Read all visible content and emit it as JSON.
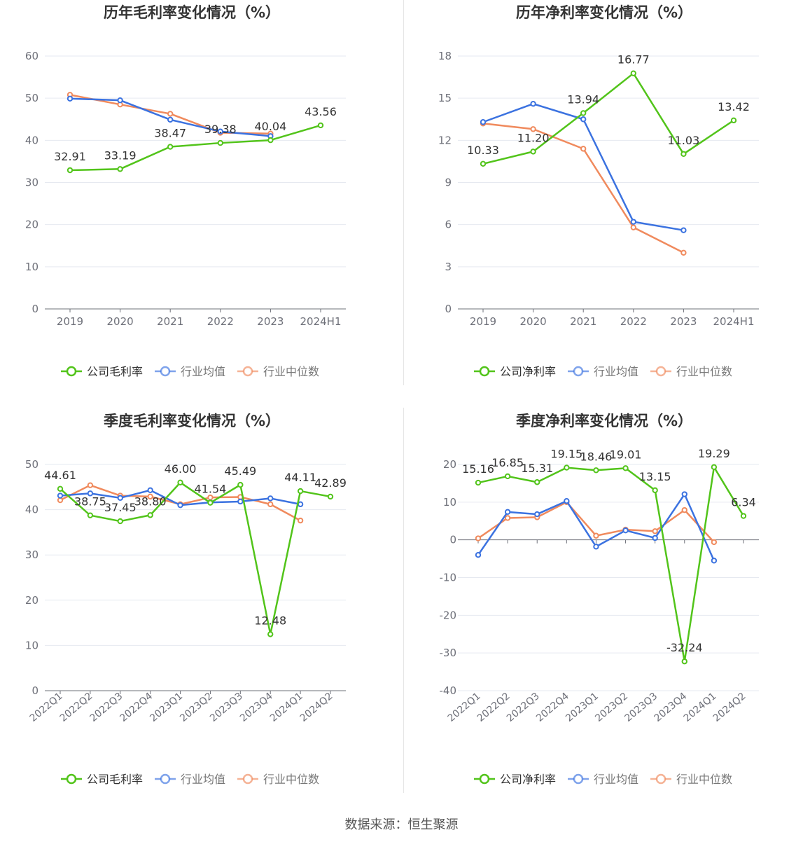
{
  "colors": {
    "company": "#52c41a",
    "avg": "#3b72e0",
    "median": "#f08a5d",
    "grid": "#e6e9f0",
    "axis": "#6e7079",
    "text": "#333333"
  },
  "source": "数据来源：恒生聚源",
  "chart_data": [
    {
      "type": "line",
      "title": "历年毛利率变化情况（%）",
      "categories": [
        "2019",
        "2020",
        "2021",
        "2022",
        "2023",
        "2024H1"
      ],
      "ylim": [
        0,
        60
      ],
      "yticks": [
        0,
        10,
        20,
        30,
        40,
        50,
        60
      ],
      "grid": true,
      "legend_position": "bottom",
      "label_series": 0,
      "series": [
        {
          "name": "公司毛利率",
          "color_key": "company",
          "values": [
            32.91,
            33.19,
            38.47,
            39.38,
            40.04,
            43.56
          ],
          "labels": [
            "32.91",
            "33.19",
            "38.47",
            "39.38",
            "40.04",
            "43.56"
          ]
        },
        {
          "name": "行业均值",
          "color_key": "avg",
          "values": [
            49.9,
            49.5,
            44.9,
            42.1,
            41.0,
            null
          ]
        },
        {
          "name": "行业中位数",
          "color_key": "median",
          "values": [
            50.8,
            48.5,
            46.3,
            41.8,
            41.6,
            null
          ]
        }
      ]
    },
    {
      "type": "line",
      "title": "历年净利率变化情况（%）",
      "categories": [
        "2019",
        "2020",
        "2021",
        "2022",
        "2023",
        "2024H1"
      ],
      "ylim": [
        0,
        18
      ],
      "yticks": [
        0,
        3,
        6,
        9,
        12,
        15,
        18
      ],
      "grid": true,
      "legend_position": "bottom",
      "label_series": 0,
      "series": [
        {
          "name": "公司净利率",
          "color_key": "company",
          "values": [
            10.33,
            11.2,
            13.94,
            16.77,
            11.03,
            13.42
          ],
          "labels": [
            "10.33",
            "11.20",
            "13.94",
            "16.77",
            "11.03",
            "13.42"
          ]
        },
        {
          "name": "行业均值",
          "color_key": "avg",
          "values": [
            13.3,
            14.6,
            13.5,
            6.2,
            5.6,
            null
          ]
        },
        {
          "name": "行业中位数",
          "color_key": "median",
          "values": [
            13.2,
            12.8,
            11.4,
            5.8,
            4.0,
            null
          ]
        }
      ]
    },
    {
      "type": "line",
      "title": "季度毛利率变化情况（%）",
      "categories": [
        "2022Q1",
        "2022Q2",
        "2022Q3",
        "2022Q4",
        "2023Q1",
        "2023Q2",
        "2023Q3",
        "2023Q4",
        "2024Q1",
        "2024Q2"
      ],
      "ylim": [
        0,
        50
      ],
      "yticks": [
        0,
        10,
        20,
        30,
        40,
        50
      ],
      "grid": true,
      "legend_position": "bottom",
      "label_series": 0,
      "series": [
        {
          "name": "公司毛利率",
          "color_key": "company",
          "values": [
            44.61,
            38.75,
            37.45,
            38.8,
            46.0,
            41.54,
            45.49,
            12.48,
            44.11,
            42.89
          ],
          "labels": [
            "44.61",
            "38.75",
            "37.45",
            "38.80",
            "46.00",
            "41.54",
            "45.49",
            "12.48",
            "44.11",
            "42.89"
          ]
        },
        {
          "name": "行业均值",
          "color_key": "avg",
          "values": [
            43.1,
            43.6,
            42.6,
            44.3,
            41.0,
            41.6,
            41.8,
            42.5,
            41.2,
            null
          ]
        },
        {
          "name": "行业中位数",
          "color_key": "median",
          "values": [
            42.1,
            45.4,
            43.1,
            42.9,
            41.2,
            42.7,
            42.8,
            41.2,
            37.6,
            null
          ]
        }
      ]
    },
    {
      "type": "line",
      "title": "季度净利率变化情况（%）",
      "categories": [
        "2022Q1",
        "2022Q2",
        "2022Q3",
        "2022Q4",
        "2023Q1",
        "2023Q2",
        "2023Q3",
        "2023Q4",
        "2024Q1",
        "2024Q2"
      ],
      "ylim": [
        -40,
        20
      ],
      "yticks": [
        -40,
        -30,
        -20,
        -10,
        0,
        10,
        20
      ],
      "grid": true,
      "legend_position": "bottom",
      "label_series": 0,
      "series": [
        {
          "name": "公司净利率",
          "color_key": "company",
          "values": [
            15.16,
            16.85,
            15.31,
            19.15,
            18.46,
            19.01,
            13.15,
            -32.24,
            19.29,
            6.34
          ],
          "labels": [
            "15.16",
            "16.85",
            "15.31",
            "19.15",
            "18.46",
            "19.01",
            "13.15",
            "-32.24",
            "19.29",
            "6.34"
          ]
        },
        {
          "name": "行业均值",
          "color_key": "avg",
          "values": [
            -4.0,
            7.4,
            6.8,
            10.3,
            -1.8,
            2.5,
            0.5,
            12.1,
            -5.5,
            null
          ]
        },
        {
          "name": "行业中位数",
          "color_key": "median",
          "values": [
            0.4,
            5.8,
            6.0,
            10.0,
            1.1,
            2.7,
            2.3,
            7.9,
            -0.6,
            null
          ]
        }
      ]
    }
  ]
}
